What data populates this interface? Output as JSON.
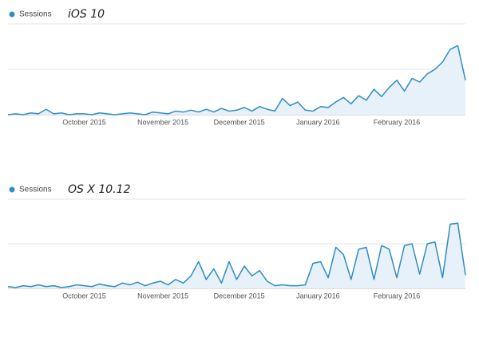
{
  "chart_data": [
    {
      "type": "area",
      "annotation": "iOS 10",
      "series": [
        {
          "name": "Sessions",
          "color": "#2f8cc4",
          "fill": "#e6f1f9",
          "values": [
            0,
            1,
            0,
            2,
            1,
            6,
            1,
            2,
            0,
            1,
            1,
            0,
            2,
            1,
            0,
            1,
            2,
            1,
            0,
            3,
            2,
            1,
            4,
            3,
            5,
            3,
            6,
            3,
            7,
            4,
            5,
            8,
            4,
            9,
            6,
            4,
            18,
            10,
            14,
            5,
            4,
            9,
            8,
            14,
            19,
            12,
            21,
            16,
            28,
            20,
            30,
            38,
            26,
            40,
            36,
            45,
            50,
            58,
            72,
            76,
            38
          ]
        }
      ],
      "xlim": [
        0,
        60
      ],
      "xticks": [
        {
          "value": 10,
          "label": "October 2015"
        },
        {
          "value": 20.33,
          "label": "November 2015"
        },
        {
          "value": 30.33,
          "label": "December 2015"
        },
        {
          "value": 40.67,
          "label": "January 2016"
        },
        {
          "value": 51,
          "label": "February 2016"
        }
      ],
      "ylim": [
        0,
        100
      ],
      "grid_lines": [
        0,
        50,
        100
      ]
    },
    {
      "type": "area",
      "annotation": "OS X 10.12",
      "series": [
        {
          "name": "Sessions",
          "color": "#2f8cc4",
          "fill": "#e6f1f9",
          "values": [
            2,
            1,
            3,
            2,
            4,
            2,
            3,
            1,
            2,
            4,
            3,
            2,
            5,
            3,
            2,
            6,
            4,
            7,
            3,
            6,
            8,
            4,
            10,
            6,
            14,
            30,
            10,
            22,
            6,
            30,
            10,
            25,
            14,
            20,
            8,
            3,
            4,
            3,
            3,
            4,
            28,
            30,
            12,
            46,
            38,
            10,
            44,
            46,
            10,
            48,
            44,
            12,
            48,
            50,
            16,
            50,
            52,
            12,
            72,
            73,
            15
          ]
        }
      ],
      "xlim": [
        0,
        60
      ],
      "xticks": [
        {
          "value": 10,
          "label": "October 2015"
        },
        {
          "value": 20.33,
          "label": "November 2015"
        },
        {
          "value": 30.33,
          "label": "December 2015"
        },
        {
          "value": 40.67,
          "label": "January 2016"
        },
        {
          "value": 51,
          "label": "February 2016"
        }
      ],
      "ylim": [
        0,
        100
      ],
      "grid_lines": [
        0,
        50,
        100
      ]
    }
  ]
}
